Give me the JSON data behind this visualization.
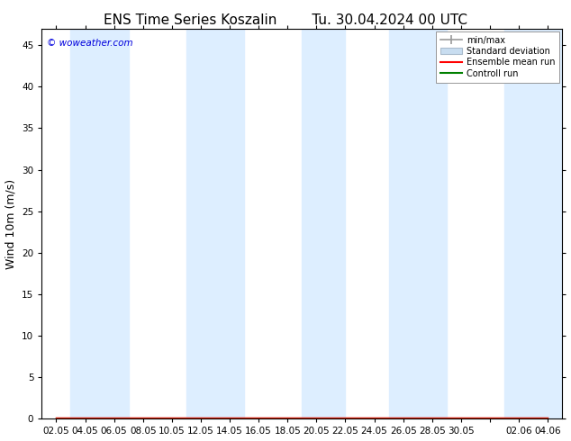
{
  "title_left": "ENS Time Series Koszalin",
  "title_right": "Tu. 30.04.2024 00 UTC",
  "ylabel": "Wind 10m (m/s)",
  "watermark": "© woweather.com",
  "watermark_color": "#0000dd",
  "ylim": [
    0,
    47
  ],
  "yticks": [
    0,
    5,
    10,
    15,
    20,
    25,
    30,
    35,
    40,
    45
  ],
  "xtick_labels": [
    "02.05",
    "04.05",
    "06.05",
    "08.05",
    "10.05",
    "12.05",
    "14.05",
    "16.05",
    "18.05",
    "20.05",
    "22.05",
    "24.05",
    "26.05",
    "28.05",
    "30.05",
    "",
    "02.06",
    "04.06"
  ],
  "background_color": "#ffffff",
  "plot_bg_color": "#ffffff",
  "band_color": "#ddeeff",
  "legend_items": [
    {
      "label": "min/max",
      "color": "#aaaaaa",
      "lw": 1.2
    },
    {
      "label": "Standard deviation",
      "color": "#c8ddf0",
      "lw": 6
    },
    {
      "label": "Ensemble mean run",
      "color": "#ff0000",
      "lw": 1.5
    },
    {
      "label": "Controll run",
      "color": "#008000",
      "lw": 1.5
    }
  ],
  "title_fontsize": 11,
  "axis_fontsize": 9,
  "tick_fontsize": 7.5
}
